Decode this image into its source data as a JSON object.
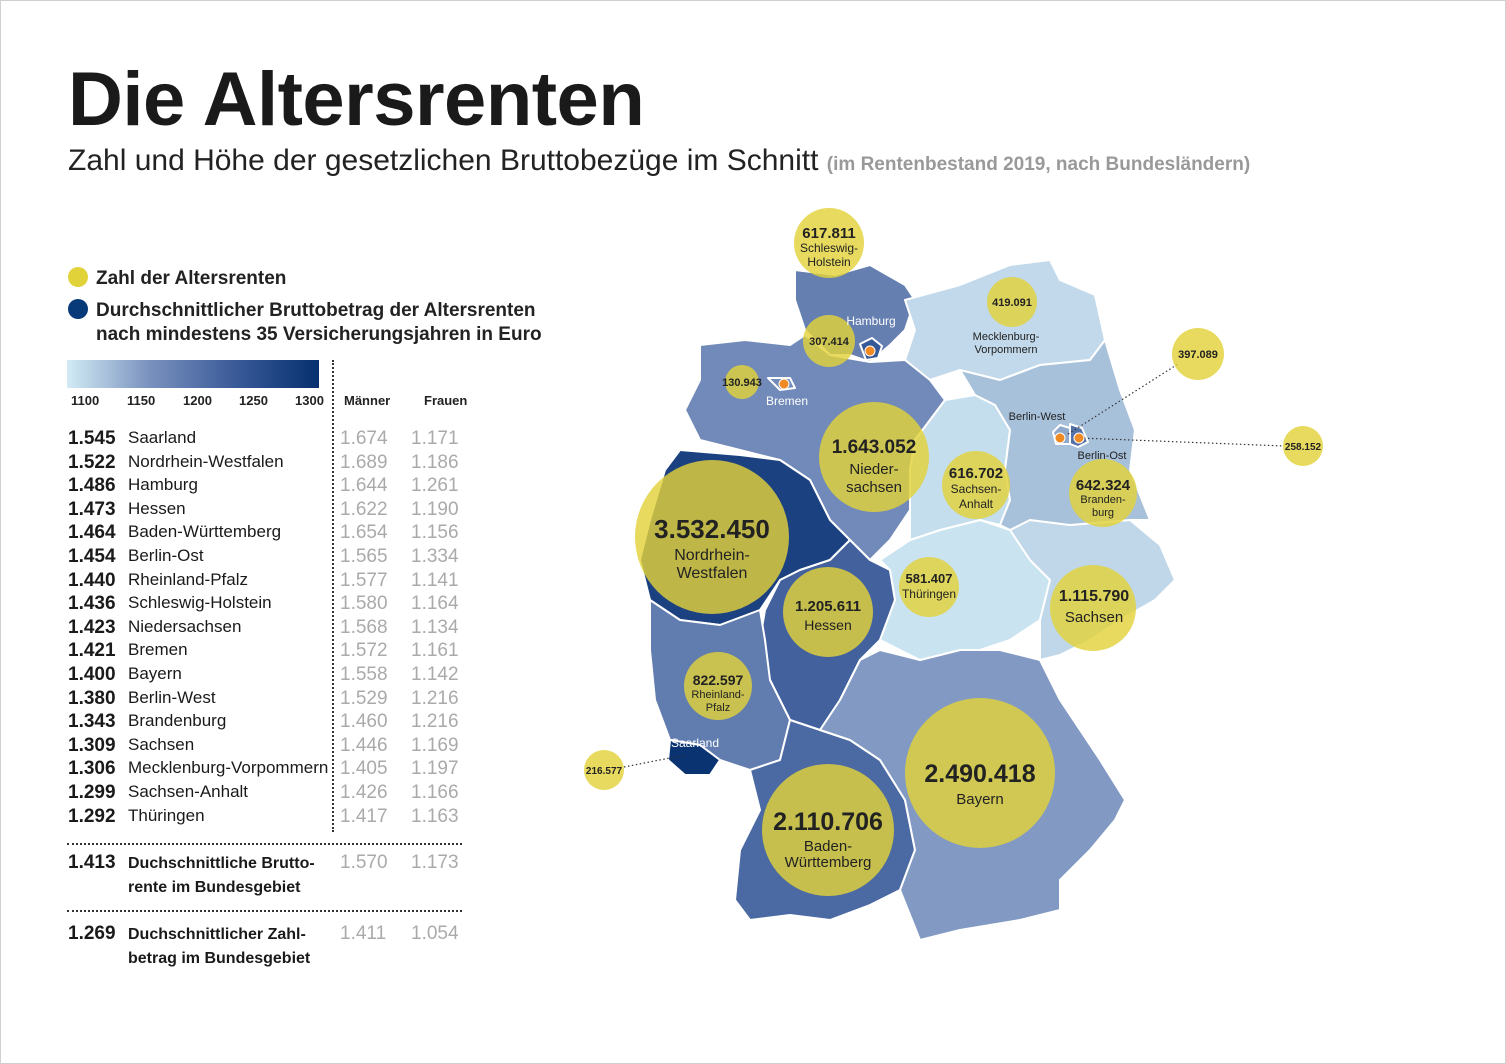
{
  "title": "Die Altersrenten",
  "subtitle": "Zahl und Höhe der gesetzlichen Bruttobezüge im Schnitt",
  "subtitle_note": "(im Rentenbestand 2019, nach Bundesländern)",
  "legend": {
    "count_label": "Zahl der Altersrenten",
    "count_color": "#e2d23a",
    "amount_label_1": "Durchschnittlicher Bruttobetrag der Altersrenten",
    "amount_label_2": "nach mindestens 35 Versicherungsjahren in Euro",
    "amount_color": "#083a7a",
    "scale_ticks": [
      "1100",
      "1150",
      "1200",
      "1250",
      "1300"
    ]
  },
  "table": {
    "col_men": "Männer",
    "col_women": "Frauen",
    "rows": [
      {
        "value": "1.545",
        "name": "Saarland",
        "men": "1.674",
        "women": "1.171"
      },
      {
        "value": "1.522",
        "name": "Nordrhein-Westfalen",
        "men": "1.689",
        "women": "1.186"
      },
      {
        "value": "1.486",
        "name": "Hamburg",
        "men": "1.644",
        "women": "1.261"
      },
      {
        "value": "1.473",
        "name": "Hessen",
        "men": "1.622",
        "women": "1.190"
      },
      {
        "value": "1.464",
        "name": "Baden-Württemberg",
        "men": "1.654",
        "women": "1.156"
      },
      {
        "value": "1.454",
        "name": "Berlin-Ost",
        "men": "1.565",
        "women": "1.334"
      },
      {
        "value": "1.440",
        "name": "Rheinland-Pfalz",
        "men": "1.577",
        "women": "1.141"
      },
      {
        "value": "1.436",
        "name": "Schleswig-Holstein",
        "men": "1.580",
        "women": "1.164"
      },
      {
        "value": "1.423",
        "name": "Niedersachsen",
        "men": "1.568",
        "women": "1.134"
      },
      {
        "value": "1.421",
        "name": "Bremen",
        "men": "1.572",
        "women": "1.161"
      },
      {
        "value": "1.400",
        "name": "Bayern",
        "men": "1.558",
        "women": "1.142"
      },
      {
        "value": "1.380",
        "name": "Berlin-West",
        "men": "1.529",
        "women": "1.216"
      },
      {
        "value": "1.343",
        "name": "Brandenburg",
        "men": "1.460",
        "women": "1.216"
      },
      {
        "value": "1.309",
        "name": "Sachsen",
        "men": "1.446",
        "women": "1.169"
      },
      {
        "value": "1.306",
        "name": "Mecklenburg-Vorpommern",
        "men": "1.405",
        "women": "1.197"
      },
      {
        "value": "1.299",
        "name": "Sachsen-Anhalt",
        "men": "1.426",
        "women": "1.166"
      },
      {
        "value": "1.292",
        "name": "Thüringen",
        "men": "1.417",
        "women": "1.163"
      }
    ],
    "summary": [
      {
        "value": "1.413",
        "name_1": "Duchschnittliche Brutto-",
        "name_2": "rente im Bundesgebiet",
        "men": "1.570",
        "women": "1.173"
      },
      {
        "value": "1.269",
        "name_1": "Duchschnittlicher Zahl-",
        "name_2": "betrag im Bundesgebiet",
        "men": "1.411",
        "women": "1.054"
      }
    ]
  },
  "map": {
    "bubble_color": "#e2d23a",
    "marker_color": "#f08a24",
    "states": {
      "sh": {
        "count": "617.811",
        "l1": "Schleswig-",
        "l2": "Holstein",
        "avg": 1436
      },
      "hh": {
        "count": "307.414",
        "label": "Hamburg",
        "avg": 1486
      },
      "hb": {
        "count": "130.943",
        "label": "Bremen",
        "avg": 1421
      },
      "mv": {
        "count": "419.091",
        "l1": "Mecklenburg-",
        "l2": "Vorpommern",
        "avg": 1306
      },
      "ni": {
        "count": "1.643.052",
        "l1": "Nieder-",
        "l2": "sachsen",
        "avg": 1423
      },
      "nw": {
        "count": "3.532.450",
        "l1": "Nordrhein-",
        "l2": "Westfalen",
        "avg": 1522
      },
      "st": {
        "count": "616.702",
        "l1": "Sachsen-",
        "l2": "Anhalt",
        "avg": 1299
      },
      "bb": {
        "count": "642.324",
        "l1": "Branden-",
        "l2": "burg",
        "avg": 1343
      },
      "bw_berlin": {
        "count": "397.089",
        "label": "Berlin-West",
        "avg": 1380
      },
      "bo_berlin": {
        "count": "258.152",
        "label": "Berlin-Ost",
        "avg": 1454
      },
      "he": {
        "count": "1.205.611",
        "l1": "Hessen",
        "avg": 1473
      },
      "th": {
        "count": "581.407",
        "l1": "Thüringen",
        "avg": 1292
      },
      "sn": {
        "count": "1.115.790",
        "l1": "Sachsen",
        "avg": 1309
      },
      "rp": {
        "count": "822.597",
        "l1": "Rheinland-",
        "l2": "Pfalz",
        "avg": 1440
      },
      "sl": {
        "count": "216.577",
        "label": "Saarland",
        "avg": 1545
      },
      "by": {
        "count": "2.490.418",
        "l1": "Bayern",
        "avg": 1400
      },
      "bwue": {
        "count": "2.110.706",
        "l1": "Baden-",
        "l2": "Württemberg",
        "avg": 1464
      }
    }
  }
}
